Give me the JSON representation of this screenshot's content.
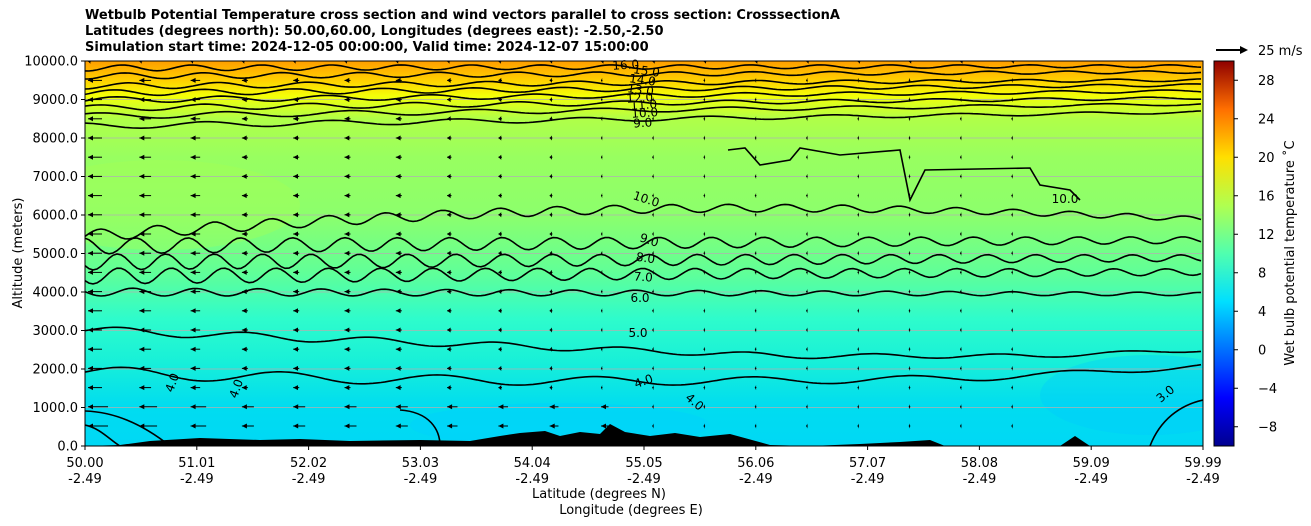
{
  "chart_data": {
    "type": "heatmap",
    "title_lines": [
      "Wetbulb Potential Temperature cross section and wind vectors parallel to cross section: CrosssectionA",
      "Latitudes (degrees north): 50.00,60.00, Longitudes (degrees east): -2.50,-2.50",
      "Simulation start time: 2024-12-05 00:00:00, Valid time: 2024-12-07 15:00:00"
    ],
    "ylabel": "Altitude (meters)",
    "xlabel_line1": "Latitude (degrees N)",
    "xlabel_line2": "Longitude (degrees E)",
    "ylim": [
      0,
      10000
    ],
    "y_ticks": [
      "0.0",
      "1000.0",
      "2000.0",
      "3000.0",
      "4000.0",
      "5000.0",
      "6000.0",
      "7000.0",
      "8000.0",
      "9000.0",
      "10000.0"
    ],
    "x_ticks": [
      {
        "lat": "50.00",
        "lon": "-2.49"
      },
      {
        "lat": "51.01",
        "lon": "-2.49"
      },
      {
        "lat": "52.02",
        "lon": "-2.49"
      },
      {
        "lat": "53.03",
        "lon": "-2.49"
      },
      {
        "lat": "54.04",
        "lon": "-2.49"
      },
      {
        "lat": "55.05",
        "lon": "-2.49"
      },
      {
        "lat": "56.06",
        "lon": "-2.49"
      },
      {
        "lat": "57.07",
        "lon": "-2.49"
      },
      {
        "lat": "58.08",
        "lon": "-2.49"
      },
      {
        "lat": "59.09",
        "lon": "-2.49"
      },
      {
        "lat": "59.99",
        "lon": "-2.49"
      }
    ],
    "xlim": [
      50.0,
      59.99
    ],
    "colorbar": {
      "label": "Wet bulb potential temperature $^\\circ$C",
      "label_display": "Wet bulb potential temperature ˚C",
      "range": [
        -10,
        30
      ],
      "colormap": "jet",
      "ticks": [
        "−8",
        "−4",
        "0",
        "4",
        "8",
        "12",
        "16",
        "20",
        "24",
        "28"
      ]
    },
    "vector_key": {
      "label": "25 m/s",
      "magnitude": 25
    },
    "contours": [
      {
        "level": "3.0"
      },
      {
        "level": "4.0"
      },
      {
        "level": "5.0"
      },
      {
        "level": "6.0"
      },
      {
        "level": "7.0"
      },
      {
        "level": "8.0"
      },
      {
        "level": "9.0"
      },
      {
        "level": "10.0"
      },
      {
        "level": "11.0"
      },
      {
        "level": "12.0"
      },
      {
        "level": "13.0"
      },
      {
        "level": "14.0"
      },
      {
        "level": "15.0"
      },
      {
        "level": "16.0"
      },
      {
        "level": "17.0"
      },
      {
        "level": "18.0"
      }
    ],
    "grid": true,
    "terrain_color": "#000000"
  }
}
